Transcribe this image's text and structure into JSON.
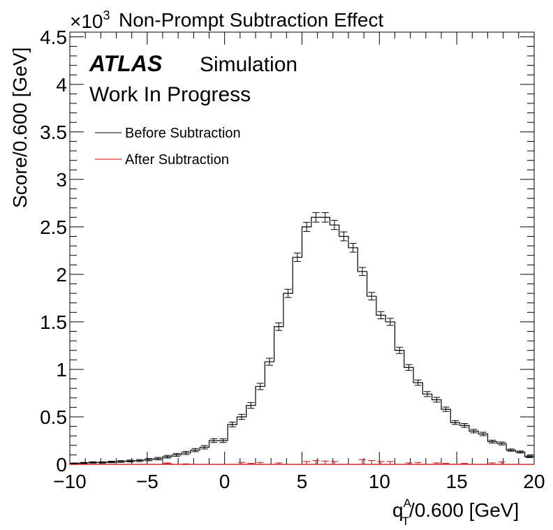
{
  "chart_data": {
    "type": "histogram",
    "title": "Non-Prompt Subtraction Effect",
    "y_multiplier": "×10",
    "y_multiplier_exp": "3",
    "ylabel": "Score/0.600 [GeV]",
    "xlabel_main": "q",
    "xlabel_sup": "A",
    "xlabel_sub": "T",
    "xlabel_rest": "/0.600 [GeV]",
    "xlim": [
      -10,
      20
    ],
    "ylim": [
      0,
      4.55
    ],
    "x_ticks": [
      -10,
      -5,
      0,
      5,
      10,
      15,
      20
    ],
    "x_tick_labels": [
      "−10",
      "−5",
      "0",
      "5",
      "10",
      "15",
      "20"
    ],
    "y_ticks": [
      0,
      0.5,
      1,
      1.5,
      2,
      2.5,
      3,
      3.5,
      4,
      4.5
    ],
    "y_tick_labels": [
      "0",
      "0.5",
      "1",
      "1.5",
      "2",
      "2.5",
      "3",
      "3.5",
      "4",
      "4.5"
    ],
    "bin_width": 0.6,
    "x_start": -10,
    "legend_placement": "top-left",
    "annotations": {
      "atlas": "ATLAS",
      "simulation": "Simulation",
      "status": "Work In Progress"
    },
    "series": [
      {
        "name": "Before Subtraction",
        "color": "#000000",
        "values": [
          0.01,
          0.015,
          0.02,
          0.02,
          0.025,
          0.03,
          0.035,
          0.04,
          0.05,
          0.06,
          0.08,
          0.1,
          0.12,
          0.15,
          0.18,
          0.25,
          0.25,
          0.42,
          0.5,
          0.62,
          0.82,
          1.08,
          1.45,
          1.8,
          2.18,
          2.5,
          2.6,
          2.6,
          2.52,
          2.4,
          2.28,
          2.03,
          1.77,
          1.57,
          1.5,
          1.2,
          1.02,
          0.86,
          0.74,
          0.68,
          0.58,
          0.44,
          0.41,
          0.35,
          0.32,
          0.24,
          0.22,
          0.15,
          0.13,
          0.08,
          0.06
        ],
        "errors": [
          0.005,
          0.006,
          0.007,
          0.007,
          0.008,
          0.009,
          0.01,
          0.011,
          0.012,
          0.013,
          0.014,
          0.015,
          0.016,
          0.017,
          0.018,
          0.02,
          0.02,
          0.025,
          0.027,
          0.03,
          0.033,
          0.037,
          0.04,
          0.043,
          0.045,
          0.048,
          0.05,
          0.05,
          0.048,
          0.047,
          0.046,
          0.043,
          0.04,
          0.038,
          0.037,
          0.033,
          0.03,
          0.028,
          0.026,
          0.025,
          0.023,
          0.02,
          0.02,
          0.018,
          0.018,
          0.015,
          0.015,
          0.012,
          0.011,
          0.009,
          0.008
        ]
      },
      {
        "name": "After Subtraction",
        "color": "#cc0000",
        "values": [
          0,
          0,
          0,
          0,
          0,
          0,
          0,
          0,
          0,
          0,
          0.005,
          0,
          0,
          0,
          0,
          0,
          0,
          0,
          0,
          0,
          0,
          0,
          0,
          0,
          0,
          0,
          0,
          0,
          0,
          0,
          0,
          0,
          0,
          0,
          0,
          0,
          0,
          0,
          0,
          0,
          0,
          0,
          0,
          0,
          0,
          0,
          0,
          0,
          0,
          0,
          0
        ],
        "errors": [
          0,
          0,
          0,
          0,
          0,
          0,
          0,
          0,
          0,
          0,
          0.01,
          0,
          0.005,
          0,
          0,
          0,
          0,
          0,
          0.02,
          0.01,
          0.02,
          0,
          0.015,
          0,
          0,
          0.03,
          0.04,
          0.035,
          0.03,
          0,
          0,
          0.05,
          0.04,
          0.03,
          0.03,
          0,
          0.015,
          0.02,
          0,
          0.015,
          0.01,
          0,
          0.01,
          0,
          0,
          0.015,
          0.025,
          0,
          0,
          0,
          0
        ]
      }
    ]
  }
}
